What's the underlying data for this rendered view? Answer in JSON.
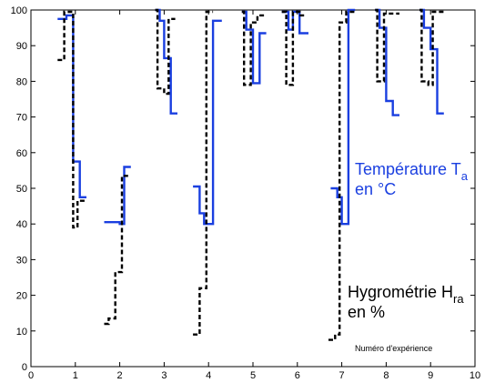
{
  "chart_data": {
    "type": "line",
    "title": "",
    "xlabel": "",
    "ylabel": "",
    "xlim": [
      0,
      10
    ],
    "ylim": [
      0,
      100
    ],
    "xticks": [
      0,
      1,
      2,
      3,
      4,
      5,
      6,
      7,
      8,
      9,
      10
    ],
    "yticks": [
      0,
      10,
      20,
      30,
      40,
      50,
      60,
      70,
      80,
      90,
      100
    ],
    "grid": false,
    "annotations": {
      "temperature_line1": "Température T",
      "temperature_sub": "a",
      "temperature_line2": "en °C",
      "humidity_line1": "Hygrométrie  H",
      "humidity_sub": "ra",
      "humidity_line2": "en %",
      "axis_note": "Numéro d'expérience"
    },
    "series": [
      {
        "color": "#1a3fe0",
        "style": "solid",
        "segments": [
          [
            [
              0.6,
              97.5
            ],
            [
              0.8,
              97.5
            ],
            [
              0.8,
              98.5
            ],
            [
              0.95,
              98.5
            ],
            [
              0.95,
              57.5
            ],
            [
              1.1,
              57.5
            ],
            [
              1.1,
              47.5
            ],
            [
              1.25,
              47.5
            ]
          ],
          [
            [
              1.65,
              40.5
            ],
            [
              2.0,
              40.5
            ],
            [
              2.0,
              40.0
            ],
            [
              2.1,
              40.0
            ],
            [
              2.1,
              56.0
            ],
            [
              2.25,
              56.0
            ]
          ],
          [
            [
              2.8,
              100
            ],
            [
              2.9,
              100
            ],
            [
              2.9,
              97.0
            ],
            [
              3.0,
              97.0
            ],
            [
              3.0,
              86.5
            ],
            [
              3.15,
              86.5
            ],
            [
              3.15,
              71.0
            ],
            [
              3.3,
              71.0
            ]
          ],
          [
            [
              3.65,
              50.5
            ],
            [
              3.8,
              50.5
            ],
            [
              3.8,
              43.0
            ],
            [
              3.9,
              43.0
            ],
            [
              3.9,
              40.0
            ],
            [
              4.1,
              40.0
            ],
            [
              4.1,
              97.0
            ],
            [
              4.3,
              97.0
            ]
          ],
          [
            [
              4.75,
              99.5
            ],
            [
              4.85,
              99.5
            ],
            [
              4.85,
              94.5
            ],
            [
              5.0,
              94.5
            ],
            [
              5.0,
              79.5
            ],
            [
              5.15,
              79.5
            ],
            [
              5.15,
              93.5
            ],
            [
              5.3,
              93.5
            ]
          ],
          [
            [
              5.65,
              99.5
            ],
            [
              5.8,
              99.5
            ],
            [
              5.8,
              94.5
            ],
            [
              5.9,
              94.5
            ],
            [
              5.9,
              99.5
            ],
            [
              6.05,
              99.5
            ],
            [
              6.05,
              93.5
            ],
            [
              6.25,
              93.5
            ]
          ],
          [
            [
              6.75,
              50.0
            ],
            [
              6.9,
              50.0
            ],
            [
              6.9,
              47.5
            ],
            [
              7.0,
              47.5
            ],
            [
              7.0,
              40.0
            ],
            [
              7.15,
              40.0
            ],
            [
              7.15,
              100
            ],
            [
              7.3,
              100
            ]
          ],
          [
            [
              7.75,
              100
            ],
            [
              7.85,
              100
            ],
            [
              7.85,
              95.0
            ],
            [
              8.0,
              95.0
            ],
            [
              8.0,
              74.5
            ],
            [
              8.15,
              74.5
            ],
            [
              8.15,
              70.5
            ],
            [
              8.3,
              70.5
            ]
          ],
          [
            [
              8.75,
              100
            ],
            [
              8.85,
              100
            ],
            [
              8.85,
              95.0
            ],
            [
              9.0,
              95.0
            ],
            [
              9.0,
              89.0
            ],
            [
              9.15,
              89.0
            ],
            [
              9.15,
              71.0
            ],
            [
              9.3,
              71.0
            ]
          ]
        ]
      },
      {
        "color": "#000000",
        "style": "dashed",
        "segments": [
          [
            [
              0.6,
              86.0
            ],
            [
              0.75,
              86.0
            ],
            [
              0.75,
              99.5
            ],
            [
              0.95,
              99.5
            ],
            [
              0.95,
              39.0
            ],
            [
              1.05,
              39.0
            ],
            [
              1.05,
              46.5
            ],
            [
              1.25,
              46.5
            ]
          ],
          [
            [
              1.65,
              12.0
            ],
            [
              1.75,
              12.0
            ],
            [
              1.75,
              13.5
            ],
            [
              1.9,
              13.5
            ],
            [
              1.9,
              26.5
            ],
            [
              2.05,
              26.5
            ],
            [
              2.05,
              53.5
            ],
            [
              2.2,
              53.5
            ]
          ],
          [
            [
              2.8,
              100
            ],
            [
              2.85,
              100
            ],
            [
              2.85,
              78.0
            ],
            [
              3.0,
              78.0
            ],
            [
              3.0,
              76.5
            ],
            [
              3.1,
              76.5
            ],
            [
              3.1,
              97.5
            ],
            [
              3.25,
              97.5
            ]
          ],
          [
            [
              3.65,
              9.0
            ],
            [
              3.8,
              9.0
            ],
            [
              3.8,
              22.0
            ],
            [
              3.95,
              22.0
            ],
            [
              3.95,
              99.5
            ],
            [
              4.1,
              99.5
            ]
          ],
          [
            [
              4.75,
              99.5
            ],
            [
              4.8,
              99.5
            ],
            [
              4.8,
              79.0
            ],
            [
              4.95,
              79.0
            ],
            [
              4.95,
              96.5
            ],
            [
              5.1,
              96.5
            ],
            [
              5.1,
              98.5
            ],
            [
              5.25,
              98.5
            ]
          ],
          [
            [
              5.65,
              99.5
            ],
            [
              5.75,
              99.5
            ],
            [
              5.75,
              79.0
            ],
            [
              5.9,
              79.0
            ],
            [
              5.9,
              99.5
            ],
            [
              6.05,
              99.5
            ],
            [
              6.05,
              98.5
            ],
            [
              6.2,
              98.5
            ]
          ],
          [
            [
              6.7,
              7.5
            ],
            [
              6.85,
              7.5
            ],
            [
              6.85,
              9.0
            ],
            [
              6.95,
              9.0
            ],
            [
              6.95,
              96.5
            ],
            [
              7.1,
              96.5
            ],
            [
              7.1,
              99.5
            ],
            [
              7.3,
              99.5
            ]
          ],
          [
            [
              7.75,
              100
            ],
            [
              7.8,
              100
            ],
            [
              7.8,
              80.0
            ],
            [
              7.95,
              80.0
            ],
            [
              7.95,
              99.0
            ],
            [
              8.3,
              99.0
            ]
          ],
          [
            [
              8.75,
              100
            ],
            [
              8.8,
              100
            ],
            [
              8.8,
              80.0
            ],
            [
              8.95,
              80.0
            ],
            [
              8.95,
              79.0
            ],
            [
              9.05,
              79.0
            ],
            [
              9.05,
              99.5
            ],
            [
              9.3,
              99.5
            ]
          ]
        ]
      }
    ]
  }
}
